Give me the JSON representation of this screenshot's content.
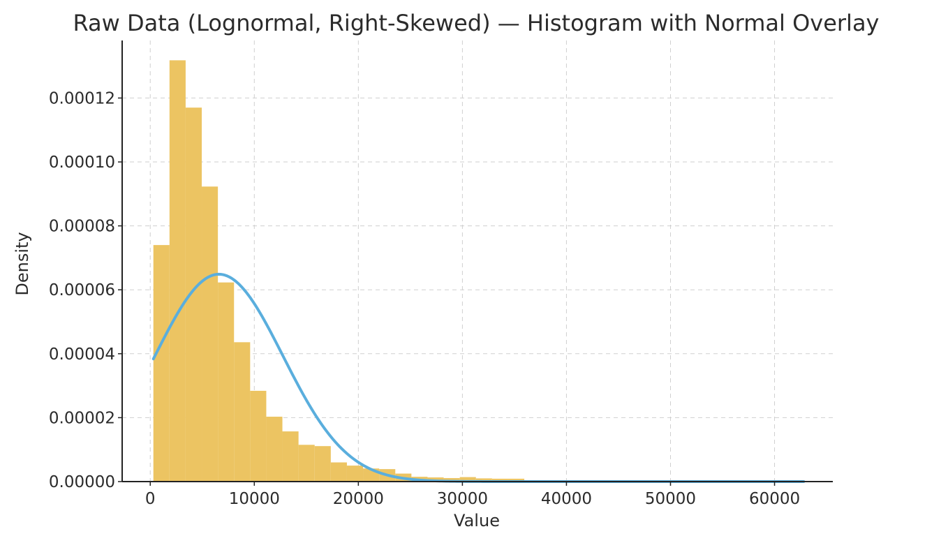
{
  "chart_data": {
    "type": "histogram",
    "title": "Raw Data (Lognormal, Right-Skewed) — Histogram with Normal Overlay",
    "xlabel": "Value",
    "ylabel": "Density",
    "xlim": [
      -2700,
      65600
    ],
    "ylim": [
      0,
      0.000138
    ],
    "grid": true,
    "legend": "none",
    "x_ticks": [
      0,
      10000,
      20000,
      30000,
      40000,
      50000,
      60000
    ],
    "x_tick_labels": [
      "0",
      "10000",
      "20000",
      "30000",
      "40000",
      "50000",
      "60000"
    ],
    "y_ticks": [
      0,
      2e-05,
      4e-05,
      6e-05,
      8e-05,
      0.0001,
      0.00012
    ],
    "y_tick_labels": [
      "0.00000",
      "0.00002",
      "0.00004",
      "0.00006",
      "0.00008",
      "0.00010",
      "0.00012"
    ],
    "bar_color": "#ecc462",
    "curve_color": "#5aaedd",
    "histogram": {
      "bin_start": 300,
      "bin_width": 1550,
      "densities": [
        7.4e-05,
        0.0001318,
        0.000117,
        9.23e-05,
        6.23e-05,
        4.36e-05,
        2.84e-05,
        2.03e-05,
        1.57e-05,
        1.15e-05,
        1.11e-05,
        6e-06,
        5e-06,
        4.1e-06,
        3.9e-06,
        2.5e-06,
        1.5e-06,
        1.3e-06,
        1.1e-06,
        1.4e-06,
        1e-06,
        9e-07,
        9e-07,
        1e-07,
        1e-07,
        1e-07,
        1e-07,
        1e-07,
        1e-07,
        1e-07,
        1e-07,
        1e-07,
        1e-07,
        1e-07,
        1e-07,
        1e-07,
        1e-07,
        1e-07,
        1e-07,
        1e-07
      ]
    },
    "normal_overlay": {
      "mean": 6600,
      "sd": 6150,
      "x_range": [
        300,
        62800
      ]
    }
  }
}
